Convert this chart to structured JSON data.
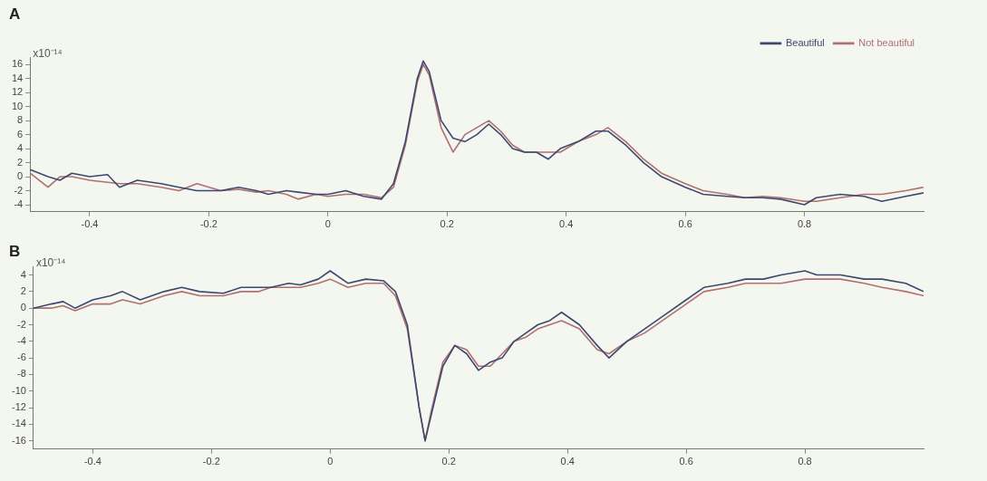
{
  "chart_data": [
    {
      "type": "line",
      "title": "A",
      "ylabel": "x10⁻¹⁴",
      "legend": "top right",
      "grid": false,
      "marker": "none",
      "line_style": "solid",
      "x": [
        -0.5,
        -0.47,
        -0.45,
        -0.43,
        -0.4,
        -0.37,
        -0.35,
        -0.32,
        -0.28,
        -0.25,
        -0.22,
        -0.18,
        -0.15,
        -0.12,
        -0.1,
        -0.07,
        -0.05,
        -0.02,
        0,
        0.03,
        0.06,
        0.09,
        0.11,
        0.13,
        0.15,
        0.16,
        0.17,
        0.19,
        0.21,
        0.23,
        0.25,
        0.27,
        0.29,
        0.31,
        0.33,
        0.35,
        0.37,
        0.39,
        0.42,
        0.45,
        0.47,
        0.5,
        0.53,
        0.56,
        0.6,
        0.63,
        0.67,
        0.7,
        0.73,
        0.76,
        0.8,
        0.82,
        0.86,
        0.9,
        0.93,
        0.97,
        1.0
      ],
      "xlim": [
        -0.5,
        1.0
      ],
      "xticks": [
        -0.4,
        -0.2,
        0,
        0.2,
        0.4,
        0.6,
        0.8
      ],
      "ylim": [
        -5,
        17
      ],
      "yticks": [
        -4,
        -2,
        0,
        2,
        4,
        6,
        8,
        10,
        12,
        14,
        16
      ],
      "series": [
        {
          "name": "Beautiful",
          "color": "#3c4870",
          "values": [
            1,
            0,
            -0.5,
            0.5,
            0,
            0.3,
            -1.5,
            -0.5,
            -1,
            -1.5,
            -2,
            -2,
            -1.5,
            -2,
            -2.5,
            -2,
            -2.2,
            -2.5,
            -2.5,
            -2,
            -2.8,
            -3.2,
            -1,
            5,
            14,
            16.5,
            15,
            8,
            5.5,
            5,
            6,
            7.5,
            6,
            4,
            3.5,
            3.5,
            2.5,
            4,
            5,
            6.5,
            6.5,
            4.5,
            2,
            0,
            -1.5,
            -2.5,
            -2.8,
            -3,
            -3,
            -3.2,
            -4,
            -3,
            -2.5,
            -2.8,
            -3.5,
            -2.8,
            -2.3
          ]
        },
        {
          "name": "Not beautiful",
          "color": "#b07070",
          "values": [
            0.5,
            -1.5,
            0,
            0,
            -0.5,
            -0.8,
            -1,
            -1,
            -1.5,
            -2,
            -1,
            -2,
            -1.8,
            -2.2,
            -2,
            -2.5,
            -3.2,
            -2.5,
            -2.8,
            -2.5,
            -2.5,
            -3,
            -1.5,
            4.5,
            13.5,
            16,
            14.5,
            7,
            3.5,
            6,
            7,
            8,
            6.5,
            4.5,
            3.5,
            3.5,
            3.5,
            3.5,
            5,
            6,
            7,
            5,
            2.5,
            0.5,
            -1,
            -2,
            -2.5,
            -3,
            -2.8,
            -3,
            -3.5,
            -3.5,
            -3,
            -2.5,
            -2.5,
            -2,
            -1.5
          ]
        }
      ]
    },
    {
      "type": "line",
      "title": "B",
      "ylabel": "x10⁻¹⁴",
      "grid": false,
      "marker": "none",
      "line_style": "solid",
      "x": [
        -0.5,
        -0.47,
        -0.45,
        -0.43,
        -0.4,
        -0.37,
        -0.35,
        -0.32,
        -0.28,
        -0.25,
        -0.22,
        -0.18,
        -0.15,
        -0.12,
        -0.1,
        -0.07,
        -0.05,
        -0.02,
        0,
        0.03,
        0.06,
        0.09,
        0.11,
        0.13,
        0.15,
        0.16,
        0.17,
        0.19,
        0.21,
        0.23,
        0.25,
        0.27,
        0.29,
        0.31,
        0.33,
        0.35,
        0.37,
        0.39,
        0.42,
        0.45,
        0.47,
        0.5,
        0.53,
        0.56,
        0.6,
        0.63,
        0.67,
        0.7,
        0.73,
        0.76,
        0.8,
        0.82,
        0.86,
        0.9,
        0.93,
        0.97,
        1.0
      ],
      "xlim": [
        -0.5,
        1.0
      ],
      "xticks": [
        -0.4,
        -0.2,
        0,
        0.2,
        0.4,
        0.6,
        0.8
      ],
      "ylim": [
        -17,
        5
      ],
      "yticks": [
        -16,
        -14,
        -12,
        -10,
        -8,
        -6,
        -4,
        -2,
        0,
        2,
        4
      ],
      "series": [
        {
          "color": "#3c4870",
          "values": [
            0,
            0.5,
            0.8,
            0,
            1,
            1.5,
            2,
            1,
            2,
            2.5,
            2,
            1.8,
            2.5,
            2.5,
            2.5,
            3,
            2.8,
            3.5,
            4.5,
            3,
            3.5,
            3.3,
            2,
            -2,
            -12,
            -16,
            -13,
            -7,
            -4.5,
            -5.5,
            -7.5,
            -6.5,
            -6,
            -4,
            -3,
            -2,
            -1.5,
            -0.5,
            -2,
            -4.5,
            -6,
            -4,
            -2.5,
            -1,
            1,
            2.5,
            3,
            3.5,
            3.5,
            4,
            4.5,
            4,
            4,
            3.5,
            3.5,
            3,
            2
          ]
        },
        {
          "color": "#b07070",
          "values": [
            0,
            0,
            0.3,
            -0.3,
            0.5,
            0.5,
            1,
            0.5,
            1.5,
            2,
            1.5,
            1.5,
            2,
            2,
            2.5,
            2.5,
            2.5,
            3,
            3.5,
            2.5,
            3,
            3,
            1.5,
            -2.5,
            -12,
            -16,
            -12.5,
            -6.5,
            -4.5,
            -5,
            -7,
            -7,
            -5.5,
            -4,
            -3.5,
            -2.5,
            -2,
            -1.5,
            -2.5,
            -5,
            -5.5,
            -4,
            -3,
            -1.5,
            0.5,
            2,
            2.5,
            3,
            3,
            3,
            3.5,
            3.5,
            3.5,
            3,
            2.5,
            2,
            1.5
          ]
        }
      ]
    }
  ]
}
